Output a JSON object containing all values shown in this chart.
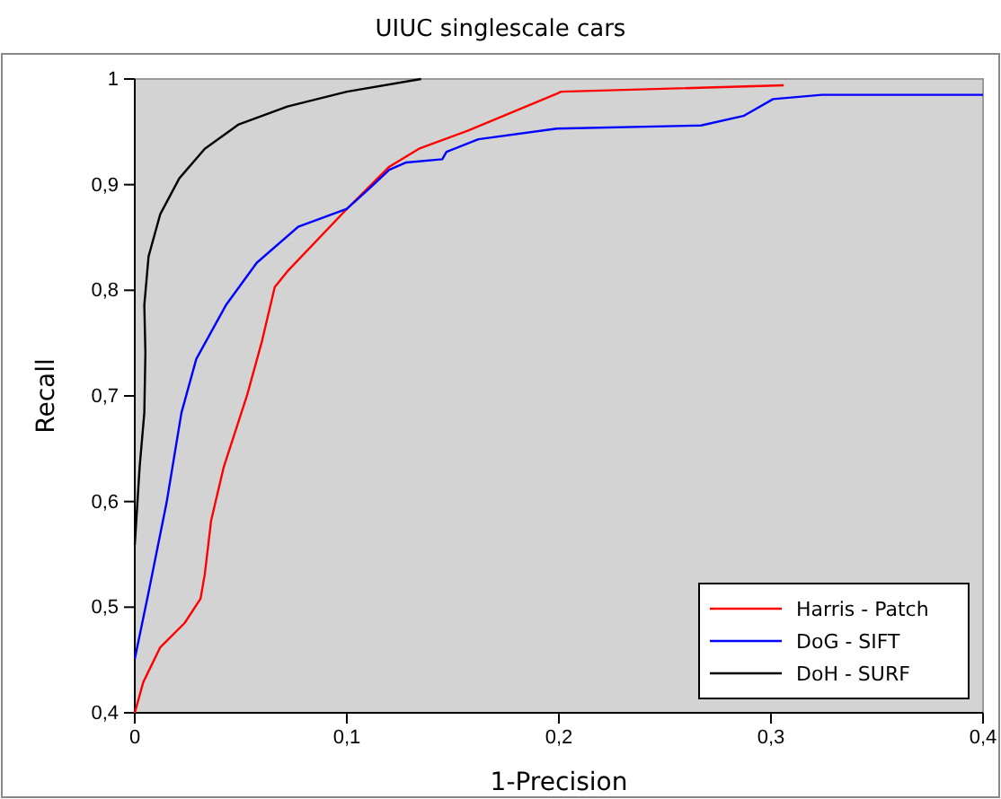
{
  "chart_data": {
    "type": "line",
    "title": "UIUC singlescale cars",
    "xlabel": "1-Precision",
    "ylabel": "Recall",
    "xlim": [
      0,
      0.4
    ],
    "ylim": [
      0.4,
      1
    ],
    "xticks": [
      0,
      {
        "value": 0.1,
        "label": "0,1"
      },
      {
        "value": 0.2,
        "label": "0,2"
      },
      {
        "value": 0.3,
        "label": "0,3"
      },
      {
        "value": 0.4,
        "label": "0,4"
      }
    ],
    "yticks": [
      {
        "value": 0.4,
        "label": "0,4"
      },
      {
        "value": 0.5,
        "label": "0,5"
      },
      {
        "value": 0.6,
        "label": "0,6"
      },
      {
        "value": 0.7,
        "label": "0,7"
      },
      {
        "value": 0.8,
        "label": "0,8"
      },
      {
        "value": 0.9,
        "label": "0,9"
      },
      1
    ],
    "legend": "bottom right",
    "grid": false,
    "marker": "none",
    "line_style": "solid",
    "series": [
      {
        "name": "Harris - Patch",
        "color": "#ff0000",
        "x": [
          0,
          0.004,
          0.012,
          0.0235,
          0.031,
          0.033,
          0.036,
          0.042,
          0.053,
          0.06,
          0.066,
          0.072,
          0.1,
          0.12,
          0.134,
          0.157,
          0.199,
          0.201,
          0.306
        ],
        "values": [
          0.4,
          0.429,
          0.462,
          0.485,
          0.508,
          0.531,
          0.582,
          0.633,
          0.701,
          0.752,
          0.803,
          0.818,
          0.877,
          0.917,
          0.934,
          0.951,
          0.986,
          0.988,
          0.994
        ]
      },
      {
        "name": "DoG - SIFT",
        "color": "#0000ff",
        "x": [
          0,
          0.0065,
          0.015,
          0.022,
          0.029,
          0.043,
          0.0575,
          0.077,
          0.1,
          0.111,
          0.12,
          0.128,
          0.145,
          0.147,
          0.162,
          0.199,
          0.267,
          0.287,
          0.301,
          0.324,
          0.4
        ],
        "values": [
          0.451,
          0.514,
          0.599,
          0.684,
          0.735,
          0.786,
          0.826,
          0.86,
          0.877,
          0.897,
          0.914,
          0.921,
          0.924,
          0.931,
          0.943,
          0.953,
          0.956,
          0.965,
          0.981,
          0.985,
          0.985
        ]
      },
      {
        "name": "DoH - SURF",
        "color": "#000000",
        "x": [
          0,
          0.0023,
          0.0045,
          0.005,
          0.0045,
          0.0065,
          0.012,
          0.021,
          0.033,
          0.049,
          0.072,
          0.1,
          0.135
        ],
        "values": [
          0.559,
          0.633,
          0.684,
          0.741,
          0.786,
          0.832,
          0.872,
          0.906,
          0.934,
          0.957,
          0.974,
          0.988,
          1
        ]
      }
    ]
  }
}
